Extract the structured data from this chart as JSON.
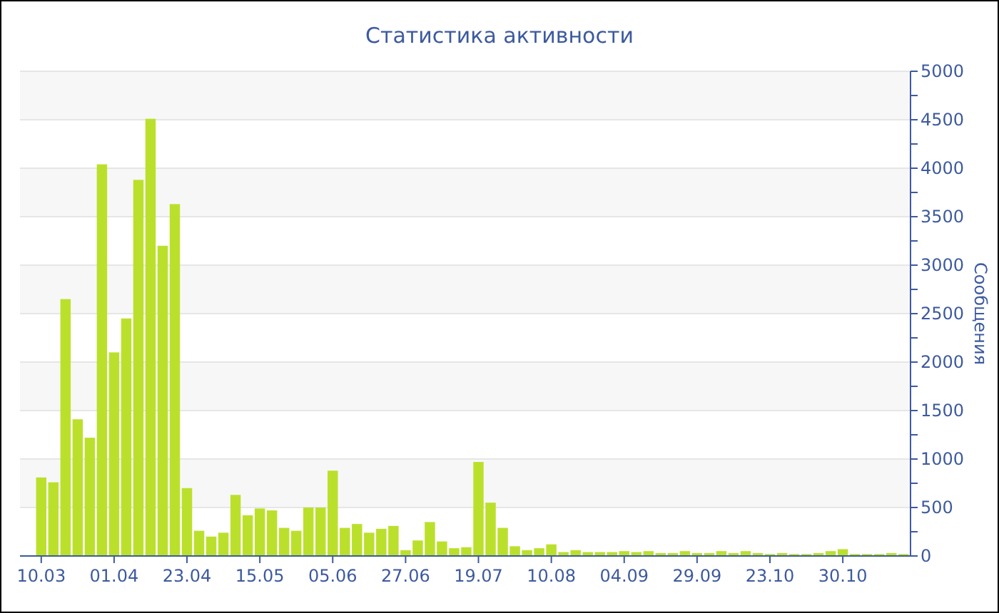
{
  "chart_data": {
    "type": "bar",
    "title": "Статистика активности",
    "ylabel": "Сообщения",
    "categories": [
      "10.03",
      null,
      null,
      null,
      null,
      null,
      "01.04",
      null,
      null,
      null,
      null,
      null,
      "23.04",
      null,
      null,
      null,
      null,
      null,
      "15.05",
      null,
      null,
      null,
      null,
      null,
      "05.06",
      null,
      null,
      null,
      null,
      null,
      "27.06",
      null,
      null,
      null,
      null,
      null,
      "19.07",
      null,
      null,
      null,
      null,
      null,
      "10.08",
      null,
      null,
      null,
      null,
      null,
      "04.09",
      null,
      null,
      null,
      null,
      null,
      "29.09",
      null,
      null,
      null,
      null,
      null,
      "23.10",
      null,
      null,
      null,
      null,
      null,
      "30.10",
      null,
      null,
      null,
      null,
      null
    ],
    "values": [
      810,
      760,
      2650,
      1410,
      1220,
      4040,
      2100,
      2450,
      3880,
      4510,
      3200,
      3630,
      700,
      260,
      200,
      240,
      630,
      420,
      490,
      470,
      290,
      260,
      500,
      500,
      880,
      290,
      330,
      240,
      280,
      310,
      60,
      160,
      350,
      150,
      80,
      90,
      970,
      550,
      290,
      100,
      60,
      80,
      120,
      40,
      60,
      40,
      40,
      40,
      50,
      40,
      50,
      30,
      30,
      50,
      30,
      30,
      50,
      30,
      50,
      30,
      20,
      30,
      20,
      20,
      30,
      50,
      70,
      20,
      20,
      20,
      30,
      20
    ],
    "color": "#bbe02c",
    "ylim": [
      0,
      5000
    ],
    "yticks": [
      0,
      {
        "value": 250,
        "label": null
      },
      500,
      {
        "value": 750,
        "label": null
      },
      1000,
      {
        "value": 1250,
        "label": null
      },
      1500,
      {
        "value": 1750,
        "label": null
      },
      2000,
      {
        "value": 2250,
        "label": null
      },
      2500,
      {
        "value": 2750,
        "label": null
      },
      3000,
      {
        "value": 3250,
        "label": null
      },
      3500,
      {
        "value": 3750,
        "label": null
      },
      4000,
      {
        "value": 4250,
        "label": null
      },
      4500,
      {
        "value": 4750,
        "label": null
      },
      5000
    ],
    "grid": "y"
  }
}
